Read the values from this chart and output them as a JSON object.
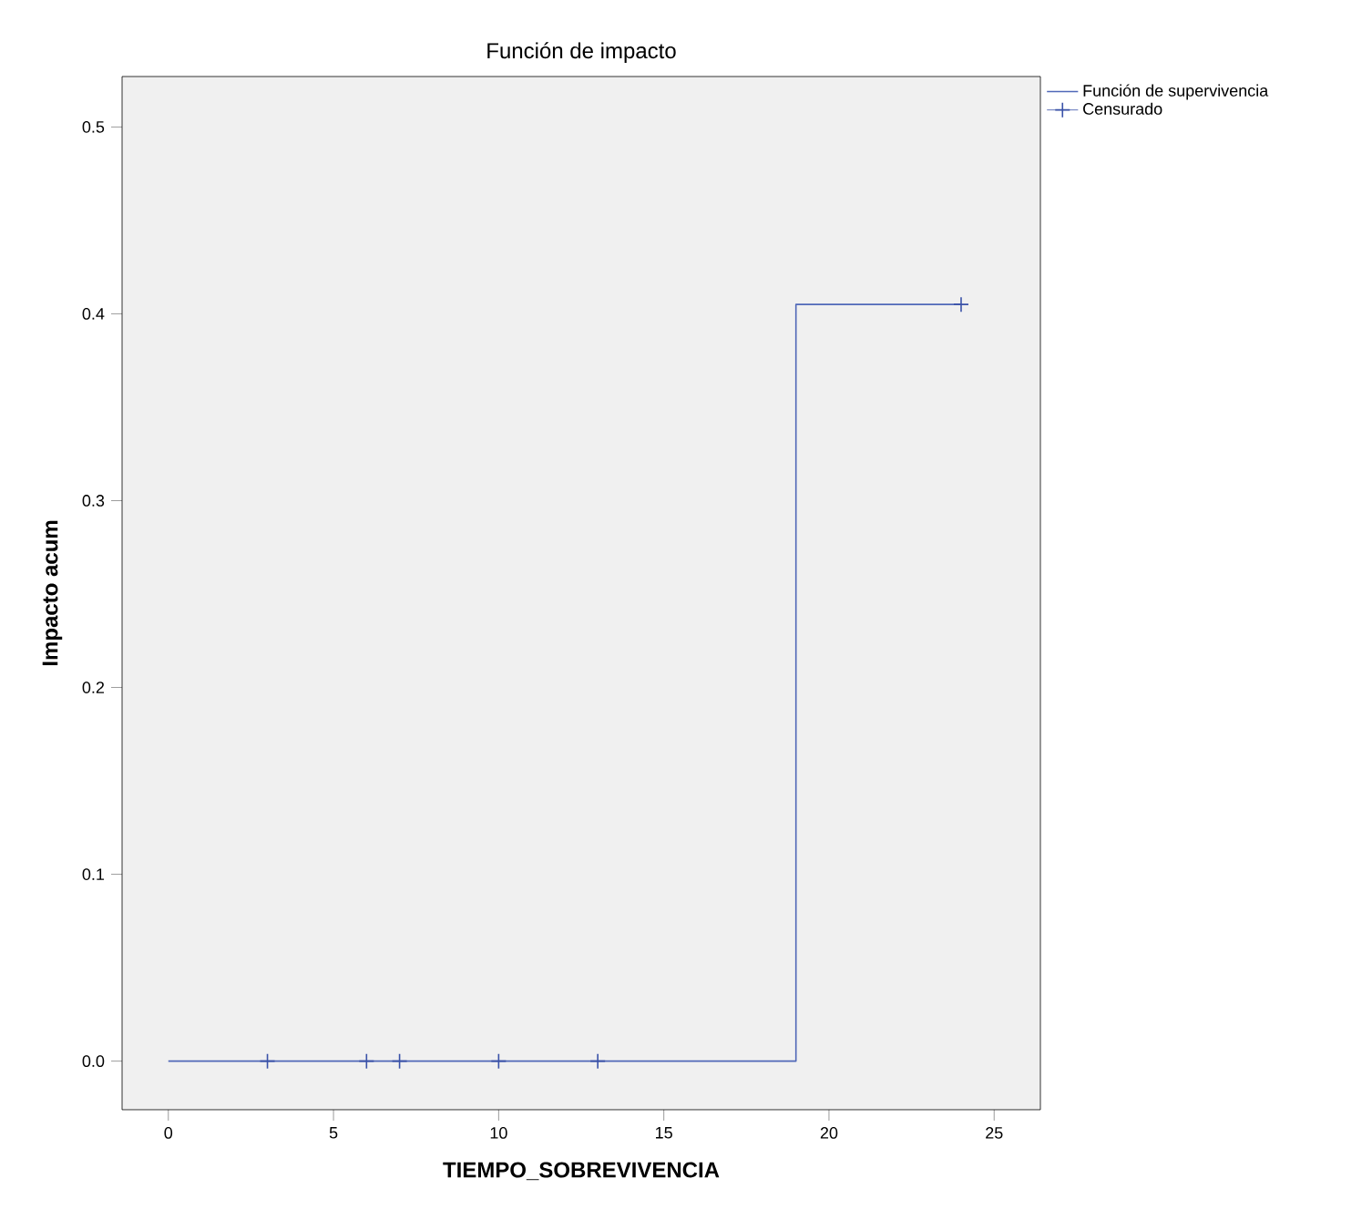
{
  "chart_data": {
    "type": "step",
    "title": "Función de impacto",
    "xlabel": "TIEMPO_SOBREVIVENCIA",
    "ylabel": "Impacto acum",
    "series": [
      {
        "name": "Función de supervivencia",
        "type": "step",
        "color": "#5068b8",
        "x": [
          0,
          19,
          24
        ],
        "values": [
          0,
          0.405,
          0.405
        ],
        "marker": "none"
      },
      {
        "name": "Censurado",
        "type": "scatter",
        "color": "#3a52a8",
        "x": [
          3,
          6,
          7,
          10,
          13,
          24
        ],
        "values": [
          0,
          0,
          0,
          0,
          0,
          0.405
        ],
        "marker": "cross"
      }
    ],
    "xlim": [
      -1.4,
      26.4
    ],
    "ylim": [
      -0.026,
      0.527
    ],
    "xticks": [
      0,
      5,
      10,
      15,
      20,
      25
    ],
    "yticks": [
      {
        "value": 0,
        "label": "0.0"
      },
      {
        "value": 0.1,
        "label": "0.1"
      },
      {
        "value": 0.2,
        "label": "0.2"
      },
      {
        "value": 0.3,
        "label": "0.3"
      },
      {
        "value": 0.4,
        "label": "0.4"
      },
      {
        "value": 0.5,
        "label": "0.5"
      }
    ],
    "grid": false,
    "legend": "top right"
  }
}
